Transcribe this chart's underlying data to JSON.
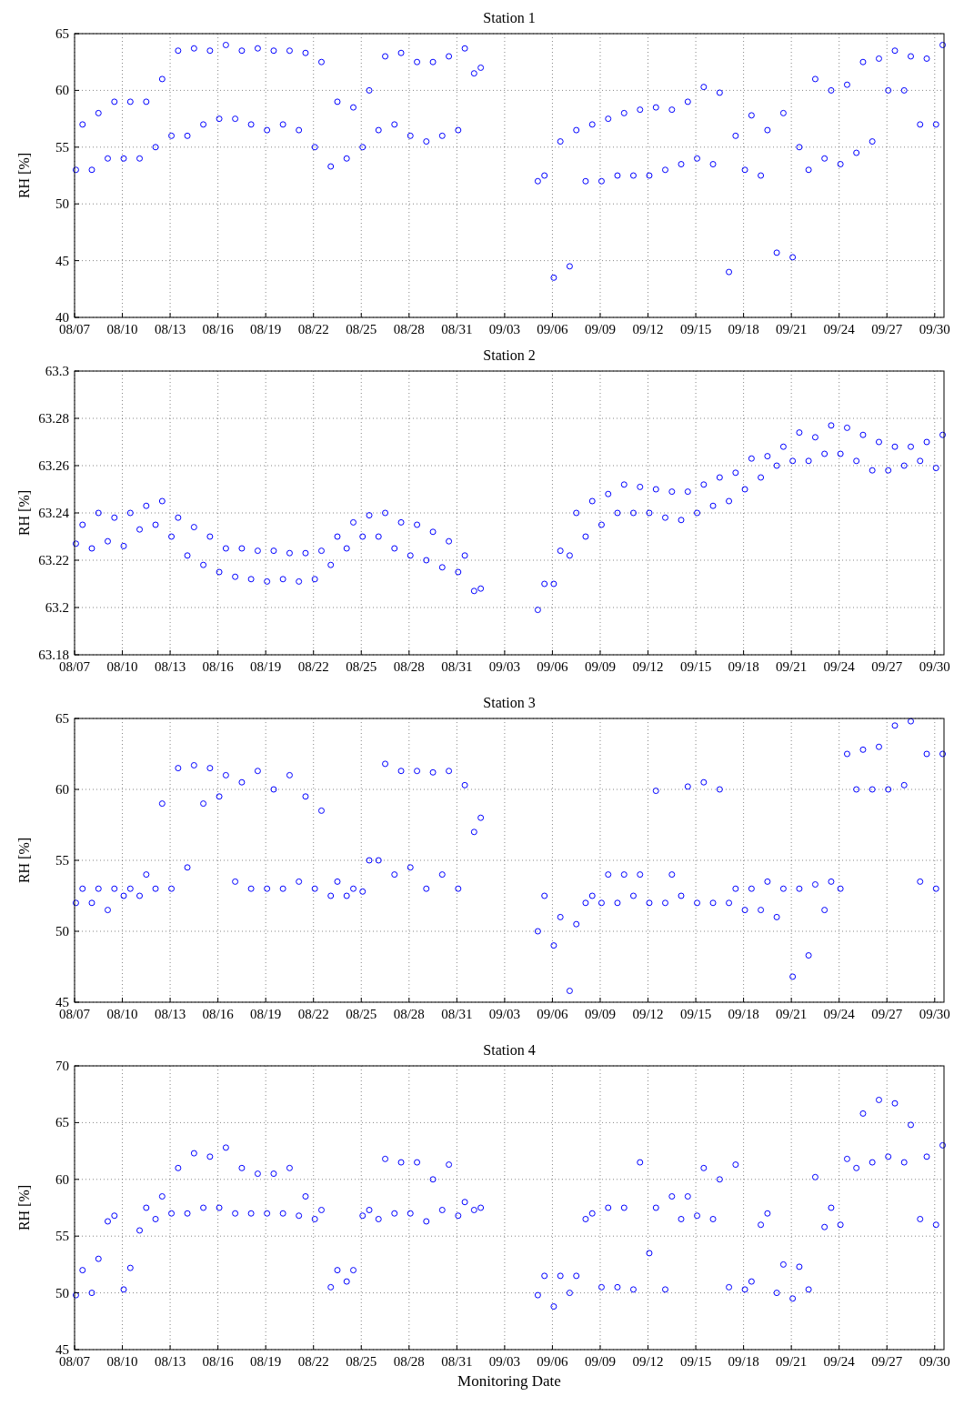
{
  "chart_data": [
    {
      "type": "scatter",
      "title": "Station 1",
      "ylabel": "RH [%]",
      "color": "#0000ff",
      "marker": "circle",
      "grid": true,
      "xlim": [
        "--08-07T00:00",
        "--09-30T14:00"
      ],
      "ylim": [
        40,
        65
      ],
      "yticks": [
        40,
        45,
        50,
        55,
        60,
        65
      ],
      "xticks": [
        {
          "value": "--08-07",
          "label": "08/07"
        },
        {
          "value": "--08-10",
          "label": "08/10"
        },
        {
          "value": "--08-13",
          "label": "08/13"
        },
        {
          "value": "--08-16",
          "label": "08/16"
        },
        {
          "value": "--08-19",
          "label": "08/19"
        },
        {
          "value": "--08-22",
          "label": "08/22"
        },
        {
          "value": "--08-25",
          "label": "08/25"
        },
        {
          "value": "--08-28",
          "label": "08/28"
        },
        {
          "value": "--08-31",
          "label": "08/31"
        },
        {
          "value": "--09-03",
          "label": "09/03"
        },
        {
          "value": "--09-06",
          "label": "09/06"
        },
        {
          "value": "--09-09",
          "label": "09/09"
        },
        {
          "value": "--09-12",
          "label": "09/12"
        },
        {
          "value": "--09-15",
          "label": "09/15"
        },
        {
          "value": "--09-18",
          "label": "09/18"
        },
        {
          "value": "--09-21",
          "label": "09/21"
        },
        {
          "value": "--09-24",
          "label": "09/24"
        },
        {
          "value": "--09-27",
          "label": "09/27"
        },
        {
          "value": "--09-30",
          "label": "09/30"
        }
      ],
      "x": [
        "--08-07T02:00",
        "--08-07T12:00",
        "--08-08T02:00",
        "--08-08T12:00",
        "--08-09T02:00",
        "--08-09T12:00",
        "--08-10T02:00",
        "--08-10T12:00",
        "--08-11T02:00",
        "--08-11T12:00",
        "--08-12T02:00",
        "--08-12T12:00",
        "--08-13T02:00",
        "--08-13T12:00",
        "--08-14T02:00",
        "--08-14T12:00",
        "--08-15T02:00",
        "--08-15T12:00",
        "--08-16T02:00",
        "--08-16T12:00",
        "--08-17T02:00",
        "--08-17T12:00",
        "--08-18T02:00",
        "--08-18T12:00",
        "--08-19T02:00",
        "--08-19T12:00",
        "--08-20T02:00",
        "--08-20T12:00",
        "--08-21T02:00",
        "--08-21T12:00",
        "--08-22T02:00",
        "--08-22T12:00",
        "--08-23T02:00",
        "--08-23T12:00",
        "--08-24T02:00",
        "--08-24T12:00",
        "--08-25T02:00",
        "--08-25T12:00",
        "--08-26T02:00",
        "--08-26T12:00",
        "--08-27T02:00",
        "--08-27T12:00",
        "--08-28T02:00",
        "--08-28T12:00",
        "--08-29T02:00",
        "--08-29T12:00",
        "--08-30T02:00",
        "--08-30T12:00",
        "--08-31T02:00",
        "--08-31T12:00",
        "--09-01T02:00",
        "--09-01T12:00",
        "--09-05T02:00",
        "--09-05T12:00",
        "--09-06T02:00",
        "--09-06T12:00",
        "--09-07T02:00",
        "--09-07T12:00",
        "--09-08T02:00",
        "--09-08T12:00",
        "--09-09T02:00",
        "--09-09T12:00",
        "--09-10T02:00",
        "--09-10T12:00",
        "--09-11T02:00",
        "--09-11T12:00",
        "--09-12T02:00",
        "--09-12T12:00",
        "--09-13T02:00",
        "--09-13T12:00",
        "--09-14T02:00",
        "--09-14T12:00",
        "--09-15T02:00",
        "--09-15T12:00",
        "--09-16T02:00",
        "--09-16T12:00",
        "--09-17T02:00",
        "--09-17T12:00",
        "--09-18T02:00",
        "--09-18T12:00",
        "--09-19T02:00",
        "--09-19T12:00",
        "--09-20T02:00",
        "--09-20T12:00",
        "--09-21T02:00",
        "--09-21T12:00",
        "--09-22T02:00",
        "--09-22T12:00",
        "--09-23T02:00",
        "--09-23T12:00",
        "--09-24T02:00",
        "--09-24T12:00",
        "--09-25T02:00",
        "--09-25T12:00",
        "--09-26T02:00",
        "--09-26T12:00",
        "--09-27T02:00",
        "--09-27T12:00",
        "--09-28T02:00",
        "--09-28T12:00",
        "--09-29T02:00",
        "--09-29T12:00",
        "--09-30T02:00",
        "--09-30T12:00"
      ],
      "values": [
        53,
        57,
        53,
        58,
        54,
        59,
        54,
        59,
        54,
        59,
        55,
        61,
        56,
        63.5,
        56,
        63.7,
        57,
        63.5,
        57.5,
        64,
        57.5,
        63.5,
        57,
        63.7,
        56.5,
        63.5,
        57,
        63.5,
        56.5,
        63.3,
        55,
        62.5,
        53.3,
        59,
        54,
        58.5,
        55,
        60,
        56.5,
        63,
        57,
        63.3,
        56,
        62.5,
        55.5,
        62.5,
        56,
        63,
        56.5,
        63.7,
        61.5,
        62,
        52,
        52.5,
        43.5,
        55.5,
        44.5,
        56.5,
        52,
        57,
        52,
        57.5,
        52.5,
        58,
        52.5,
        58.3,
        52.5,
        58.5,
        53,
        58.3,
        53.5,
        59,
        54,
        60.3,
        53.5,
        59.8,
        44,
        56,
        53,
        57.8,
        52.5,
        56.5,
        45.7,
        58,
        45.3,
        55,
        53,
        61,
        54,
        60,
        53.5,
        60.5,
        54.5,
        62.5,
        55.5,
        62.8,
        60,
        63.5,
        60,
        63,
        57,
        62.8,
        57,
        64
      ]
    },
    {
      "type": "scatter",
      "title": "Station 2",
      "ylabel": "RH [%]",
      "color": "#0000ff",
      "marker": "circle",
      "grid": true,
      "xlim": [
        "--08-07T00:00",
        "--09-30T14:00"
      ],
      "ylim": [
        63.18,
        63.3
      ],
      "yticks": [
        63.18,
        63.2,
        63.22,
        63.24,
        63.26,
        63.28,
        63.3
      ],
      "xticks": [
        {
          "value": "--08-07",
          "label": "08/07"
        },
        {
          "value": "--08-10",
          "label": "08/10"
        },
        {
          "value": "--08-13",
          "label": "08/13"
        },
        {
          "value": "--08-16",
          "label": "08/16"
        },
        {
          "value": "--08-19",
          "label": "08/19"
        },
        {
          "value": "--08-22",
          "label": "08/22"
        },
        {
          "value": "--08-25",
          "label": "08/25"
        },
        {
          "value": "--08-28",
          "label": "08/28"
        },
        {
          "value": "--08-31",
          "label": "08/31"
        },
        {
          "value": "--09-03",
          "label": "09/03"
        },
        {
          "value": "--09-06",
          "label": "09/06"
        },
        {
          "value": "--09-09",
          "label": "09/09"
        },
        {
          "value": "--09-12",
          "label": "09/12"
        },
        {
          "value": "--09-15",
          "label": "09/15"
        },
        {
          "value": "--09-18",
          "label": "09/18"
        },
        {
          "value": "--09-21",
          "label": "09/21"
        },
        {
          "value": "--09-24",
          "label": "09/24"
        },
        {
          "value": "--09-27",
          "label": "09/27"
        },
        {
          "value": "--09-30",
          "label": "09/30"
        }
      ],
      "x": [
        "--08-07T02:00",
        "--08-07T12:00",
        "--08-08T02:00",
        "--08-08T12:00",
        "--08-09T02:00",
        "--08-09T12:00",
        "--08-10T02:00",
        "--08-10T12:00",
        "--08-11T02:00",
        "--08-11T12:00",
        "--08-12T02:00",
        "--08-12T12:00",
        "--08-13T02:00",
        "--08-13T12:00",
        "--08-14T02:00",
        "--08-14T12:00",
        "--08-15T02:00",
        "--08-15T12:00",
        "--08-16T02:00",
        "--08-16T12:00",
        "--08-17T02:00",
        "--08-17T12:00",
        "--08-18T02:00",
        "--08-18T12:00",
        "--08-19T02:00",
        "--08-19T12:00",
        "--08-20T02:00",
        "--08-20T12:00",
        "--08-21T02:00",
        "--08-21T12:00",
        "--08-22T02:00",
        "--08-22T12:00",
        "--08-23T02:00",
        "--08-23T12:00",
        "--08-24T02:00",
        "--08-24T12:00",
        "--08-25T02:00",
        "--08-25T12:00",
        "--08-26T02:00",
        "--08-26T12:00",
        "--08-27T02:00",
        "--08-27T12:00",
        "--08-28T02:00",
        "--08-28T12:00",
        "--08-29T02:00",
        "--08-29T12:00",
        "--08-30T02:00",
        "--08-30T12:00",
        "--08-31T02:00",
        "--08-31T12:00",
        "--09-01T02:00",
        "--09-01T12:00",
        "--09-05T02:00",
        "--09-05T12:00",
        "--09-06T02:00",
        "--09-06T12:00",
        "--09-07T02:00",
        "--09-07T12:00",
        "--09-08T02:00",
        "--09-08T12:00",
        "--09-09T02:00",
        "--09-09T12:00",
        "--09-10T02:00",
        "--09-10T12:00",
        "--09-11T02:00",
        "--09-11T12:00",
        "--09-12T02:00",
        "--09-12T12:00",
        "--09-13T02:00",
        "--09-13T12:00",
        "--09-14T02:00",
        "--09-14T12:00",
        "--09-15T02:00",
        "--09-15T12:00",
        "--09-16T02:00",
        "--09-16T12:00",
        "--09-17T02:00",
        "--09-17T12:00",
        "--09-18T02:00",
        "--09-18T12:00",
        "--09-19T02:00",
        "--09-19T12:00",
        "--09-20T02:00",
        "--09-20T12:00",
        "--09-21T02:00",
        "--09-21T12:00",
        "--09-22T02:00",
        "--09-22T12:00",
        "--09-23T02:00",
        "--09-23T12:00",
        "--09-24T02:00",
        "--09-24T12:00",
        "--09-25T02:00",
        "--09-25T12:00",
        "--09-26T02:00",
        "--09-26T12:00",
        "--09-27T02:00",
        "--09-27T12:00",
        "--09-28T02:00",
        "--09-28T12:00",
        "--09-29T02:00",
        "--09-29T12:00",
        "--09-30T02:00",
        "--09-30T12:00"
      ],
      "values": [
        63.227,
        63.235,
        63.225,
        63.24,
        63.228,
        63.238,
        63.226,
        63.24,
        63.233,
        63.243,
        63.235,
        63.245,
        63.23,
        63.238,
        63.222,
        63.234,
        63.218,
        63.23,
        63.215,
        63.225,
        63.213,
        63.225,
        63.212,
        63.224,
        63.211,
        63.224,
        63.212,
        63.223,
        63.211,
        63.223,
        63.212,
        63.224,
        63.218,
        63.23,
        63.225,
        63.236,
        63.23,
        63.239,
        63.23,
        63.24,
        63.225,
        63.236,
        63.222,
        63.235,
        63.22,
        63.232,
        63.217,
        63.228,
        63.215,
        63.222,
        63.207,
        63.208,
        63.199,
        63.21,
        63.21,
        63.224,
        63.222,
        63.24,
        63.23,
        63.245,
        63.235,
        63.248,
        63.24,
        63.252,
        63.24,
        63.251,
        63.24,
        63.25,
        63.238,
        63.249,
        63.237,
        63.249,
        63.24,
        63.252,
        63.243,
        63.255,
        63.245,
        63.257,
        63.25,
        63.263,
        63.255,
        63.264,
        63.26,
        63.268,
        63.262,
        63.274,
        63.262,
        63.272,
        63.265,
        63.277,
        63.265,
        63.276,
        63.262,
        63.273,
        63.258,
        63.27,
        63.258,
        63.268,
        63.26,
        63.268,
        63.262,
        63.27,
        63.259,
        63.273
      ]
    },
    {
      "type": "scatter",
      "title": "Station 3",
      "ylabel": "RH [%]",
      "color": "#0000ff",
      "marker": "circle",
      "grid": true,
      "xlim": [
        "--08-07T00:00",
        "--09-30T14:00"
      ],
      "ylim": [
        45,
        65
      ],
      "yticks": [
        45,
        50,
        55,
        60,
        65
      ],
      "xticks": [
        {
          "value": "--08-07",
          "label": "08/07"
        },
        {
          "value": "--08-10",
          "label": "08/10"
        },
        {
          "value": "--08-13",
          "label": "08/13"
        },
        {
          "value": "--08-16",
          "label": "08/16"
        },
        {
          "value": "--08-19",
          "label": "08/19"
        },
        {
          "value": "--08-22",
          "label": "08/22"
        },
        {
          "value": "--08-25",
          "label": "08/25"
        },
        {
          "value": "--08-28",
          "label": "08/28"
        },
        {
          "value": "--08-31",
          "label": "08/31"
        },
        {
          "value": "--09-03",
          "label": "09/03"
        },
        {
          "value": "--09-06",
          "label": "09/06"
        },
        {
          "value": "--09-09",
          "label": "09/09"
        },
        {
          "value": "--09-12",
          "label": "09/12"
        },
        {
          "value": "--09-15",
          "label": "09/15"
        },
        {
          "value": "--09-18",
          "label": "09/18"
        },
        {
          "value": "--09-21",
          "label": "09/21"
        },
        {
          "value": "--09-24",
          "label": "09/24"
        },
        {
          "value": "--09-27",
          "label": "09/27"
        },
        {
          "value": "--09-30",
          "label": "09/30"
        }
      ],
      "x": [
        "--08-07T02:00",
        "--08-07T12:00",
        "--08-08T02:00",
        "--08-08T12:00",
        "--08-09T02:00",
        "--08-09T12:00",
        "--08-10T02:00",
        "--08-10T12:00",
        "--08-11T02:00",
        "--08-11T12:00",
        "--08-12T02:00",
        "--08-12T12:00",
        "--08-13T02:00",
        "--08-13T12:00",
        "--08-14T02:00",
        "--08-14T12:00",
        "--08-15T02:00",
        "--08-15T12:00",
        "--08-16T02:00",
        "--08-16T12:00",
        "--08-17T02:00",
        "--08-17T12:00",
        "--08-18T02:00",
        "--08-18T12:00",
        "--08-19T02:00",
        "--08-19T12:00",
        "--08-20T02:00",
        "--08-20T12:00",
        "--08-21T02:00",
        "--08-21T12:00",
        "--08-22T02:00",
        "--08-22T12:00",
        "--08-23T02:00",
        "--08-23T12:00",
        "--08-24T02:00",
        "--08-24T12:00",
        "--08-25T02:00",
        "--08-25T12:00",
        "--08-26T02:00",
        "--08-26T12:00",
        "--08-27T02:00",
        "--08-27T12:00",
        "--08-28T02:00",
        "--08-28T12:00",
        "--08-29T02:00",
        "--08-29T12:00",
        "--08-30T02:00",
        "--08-30T12:00",
        "--08-31T02:00",
        "--08-31T12:00",
        "--09-01T02:00",
        "--09-01T12:00",
        "--09-05T02:00",
        "--09-05T12:00",
        "--09-06T02:00",
        "--09-06T12:00",
        "--09-07T02:00",
        "--09-07T12:00",
        "--09-08T02:00",
        "--09-08T12:00",
        "--09-09T02:00",
        "--09-09T12:00",
        "--09-10T02:00",
        "--09-10T12:00",
        "--09-11T02:00",
        "--09-11T12:00",
        "--09-12T02:00",
        "--09-12T12:00",
        "--09-13T02:00",
        "--09-13T12:00",
        "--09-14T02:00",
        "--09-14T12:00",
        "--09-15T02:00",
        "--09-15T12:00",
        "--09-16T02:00",
        "--09-16T12:00",
        "--09-17T02:00",
        "--09-17T12:00",
        "--09-18T02:00",
        "--09-18T12:00",
        "--09-19T02:00",
        "--09-19T12:00",
        "--09-20T02:00",
        "--09-20T12:00",
        "--09-21T02:00",
        "--09-21T12:00",
        "--09-22T02:00",
        "--09-22T12:00",
        "--09-23T02:00",
        "--09-23T12:00",
        "--09-24T02:00",
        "--09-24T12:00",
        "--09-25T02:00",
        "--09-25T12:00",
        "--09-26T02:00",
        "--09-26T12:00",
        "--09-27T02:00",
        "--09-27T12:00",
        "--09-28T02:00",
        "--09-28T12:00",
        "--09-29T02:00",
        "--09-29T12:00",
        "--09-30T02:00",
        "--09-30T12:00"
      ],
      "values": [
        52,
        53,
        52,
        53,
        51.5,
        53,
        52.5,
        53,
        52.5,
        54,
        53,
        59,
        53,
        61.5,
        54.5,
        61.7,
        59,
        61.5,
        59.5,
        61,
        53.5,
        60.5,
        53,
        61.3,
        53,
        60,
        53,
        61,
        53.5,
        59.5,
        53,
        58.5,
        52.5,
        53.5,
        52.5,
        53,
        52.8,
        55,
        55,
        61.8,
        54,
        61.3,
        54.5,
        61.3,
        53,
        61.2,
        54,
        61.3,
        53,
        60.3,
        57,
        58,
        50,
        52.5,
        49,
        51,
        45.8,
        50.5,
        52,
        52.5,
        52,
        54,
        52,
        54,
        52.5,
        54,
        52,
        59.9,
        52,
        54,
        52.5,
        60.2,
        52,
        60.5,
        52,
        60,
        52,
        53,
        51.5,
        53,
        51.5,
        53.5,
        51,
        53,
        46.8,
        53,
        48.3,
        53.3,
        51.5,
        53.5,
        53,
        62.5,
        60,
        62.8,
        60,
        63,
        60,
        64.5,
        60.3,
        64.8,
        53.5,
        62.5,
        53,
        62.5
      ]
    },
    {
      "type": "scatter",
      "title": "Station 4",
      "ylabel": "RH [%]",
      "xlabel": "Monitoring Date",
      "color": "#0000ff",
      "marker": "circle",
      "grid": true,
      "xlim": [
        "--08-07T00:00",
        "--09-30T14:00"
      ],
      "ylim": [
        45,
        70
      ],
      "yticks": [
        45,
        50,
        55,
        60,
        65,
        70
      ],
      "xticks": [
        {
          "value": "--08-07",
          "label": "08/07"
        },
        {
          "value": "--08-10",
          "label": "08/10"
        },
        {
          "value": "--08-13",
          "label": "08/13"
        },
        {
          "value": "--08-16",
          "label": "08/16"
        },
        {
          "value": "--08-19",
          "label": "08/19"
        },
        {
          "value": "--08-22",
          "label": "08/22"
        },
        {
          "value": "--08-25",
          "label": "08/25"
        },
        {
          "value": "--08-28",
          "label": "08/28"
        },
        {
          "value": "--08-31",
          "label": "08/31"
        },
        {
          "value": "--09-03",
          "label": "09/03"
        },
        {
          "value": "--09-06",
          "label": "09/06"
        },
        {
          "value": "--09-09",
          "label": "09/09"
        },
        {
          "value": "--09-12",
          "label": "09/12"
        },
        {
          "value": "--09-15",
          "label": "09/15"
        },
        {
          "value": "--09-18",
          "label": "09/18"
        },
        {
          "value": "--09-21",
          "label": "09/21"
        },
        {
          "value": "--09-24",
          "label": "09/24"
        },
        {
          "value": "--09-27",
          "label": "09/27"
        },
        {
          "value": "--09-30",
          "label": "09/30"
        }
      ],
      "x": [
        "--08-07T02:00",
        "--08-07T12:00",
        "--08-08T02:00",
        "--08-08T12:00",
        "--08-09T02:00",
        "--08-09T12:00",
        "--08-10T02:00",
        "--08-10T12:00",
        "--08-11T02:00",
        "--08-11T12:00",
        "--08-12T02:00",
        "--08-12T12:00",
        "--08-13T02:00",
        "--08-13T12:00",
        "--08-14T02:00",
        "--08-14T12:00",
        "--08-15T02:00",
        "--08-15T12:00",
        "--08-16T02:00",
        "--08-16T12:00",
        "--08-17T02:00",
        "--08-17T12:00",
        "--08-18T02:00",
        "--08-18T12:00",
        "--08-19T02:00",
        "--08-19T12:00",
        "--08-20T02:00",
        "--08-20T12:00",
        "--08-21T02:00",
        "--08-21T12:00",
        "--08-22T02:00",
        "--08-22T12:00",
        "--08-23T02:00",
        "--08-23T12:00",
        "--08-24T02:00",
        "--08-24T12:00",
        "--08-25T02:00",
        "--08-25T12:00",
        "--08-26T02:00",
        "--08-26T12:00",
        "--08-27T02:00",
        "--08-27T12:00",
        "--08-28T02:00",
        "--08-28T12:00",
        "--08-29T02:00",
        "--08-29T12:00",
        "--08-30T02:00",
        "--08-30T12:00",
        "--08-31T02:00",
        "--08-31T12:00",
        "--09-01T02:00",
        "--09-01T12:00",
        "--09-05T02:00",
        "--09-05T12:00",
        "--09-06T02:00",
        "--09-06T12:00",
        "--09-07T02:00",
        "--09-07T12:00",
        "--09-08T02:00",
        "--09-08T12:00",
        "--09-09T02:00",
        "--09-09T12:00",
        "--09-10T02:00",
        "--09-10T12:00",
        "--09-11T02:00",
        "--09-11T12:00",
        "--09-12T02:00",
        "--09-12T12:00",
        "--09-13T02:00",
        "--09-13T12:00",
        "--09-14T02:00",
        "--09-14T12:00",
        "--09-15T02:00",
        "--09-15T12:00",
        "--09-16T02:00",
        "--09-16T12:00",
        "--09-17T02:00",
        "--09-17T12:00",
        "--09-18T02:00",
        "--09-18T12:00",
        "--09-19T02:00",
        "--09-19T12:00",
        "--09-20T02:00",
        "--09-20T12:00",
        "--09-21T02:00",
        "--09-21T12:00",
        "--09-22T02:00",
        "--09-22T12:00",
        "--09-23T02:00",
        "--09-23T12:00",
        "--09-24T02:00",
        "--09-24T12:00",
        "--09-25T02:00",
        "--09-25T12:00",
        "--09-26T02:00",
        "--09-26T12:00",
        "--09-27T02:00",
        "--09-27T12:00",
        "--09-28T02:00",
        "--09-28T12:00",
        "--09-29T02:00",
        "--09-29T12:00",
        "--09-30T02:00",
        "--09-30T12:00"
      ],
      "values": [
        49.8,
        52,
        50,
        53,
        56.3,
        56.8,
        50.3,
        52.2,
        55.5,
        57.5,
        56.5,
        58.5,
        57,
        61,
        57,
        62.3,
        57.5,
        62,
        57.5,
        62.8,
        57,
        61,
        57,
        60.5,
        57,
        60.5,
        57,
        61,
        56.8,
        58.5,
        56.5,
        57.3,
        50.5,
        52,
        51,
        52,
        56.8,
        57.3,
        56.5,
        61.8,
        57,
        61.5,
        57,
        61.5,
        56.3,
        60,
        57.3,
        61.3,
        56.8,
        58,
        57.3,
        57.5,
        49.8,
        51.5,
        48.8,
        51.5,
        50,
        51.5,
        56.5,
        57,
        50.5,
        57.5,
        50.5,
        57.5,
        50.3,
        61.5,
        53.5,
        57.5,
        50.3,
        58.5,
        56.5,
        58.5,
        56.8,
        61,
        56.5,
        60,
        50.5,
        61.3,
        50.3,
        51,
        56,
        57,
        50,
        52.5,
        49.5,
        52.3,
        50.3,
        60.2,
        55.8,
        57.5,
        56,
        61.8,
        61,
        65.8,
        61.5,
        67,
        62,
        66.7,
        61.5,
        64.8,
        56.5,
        62,
        56,
        63
      ]
    }
  ]
}
